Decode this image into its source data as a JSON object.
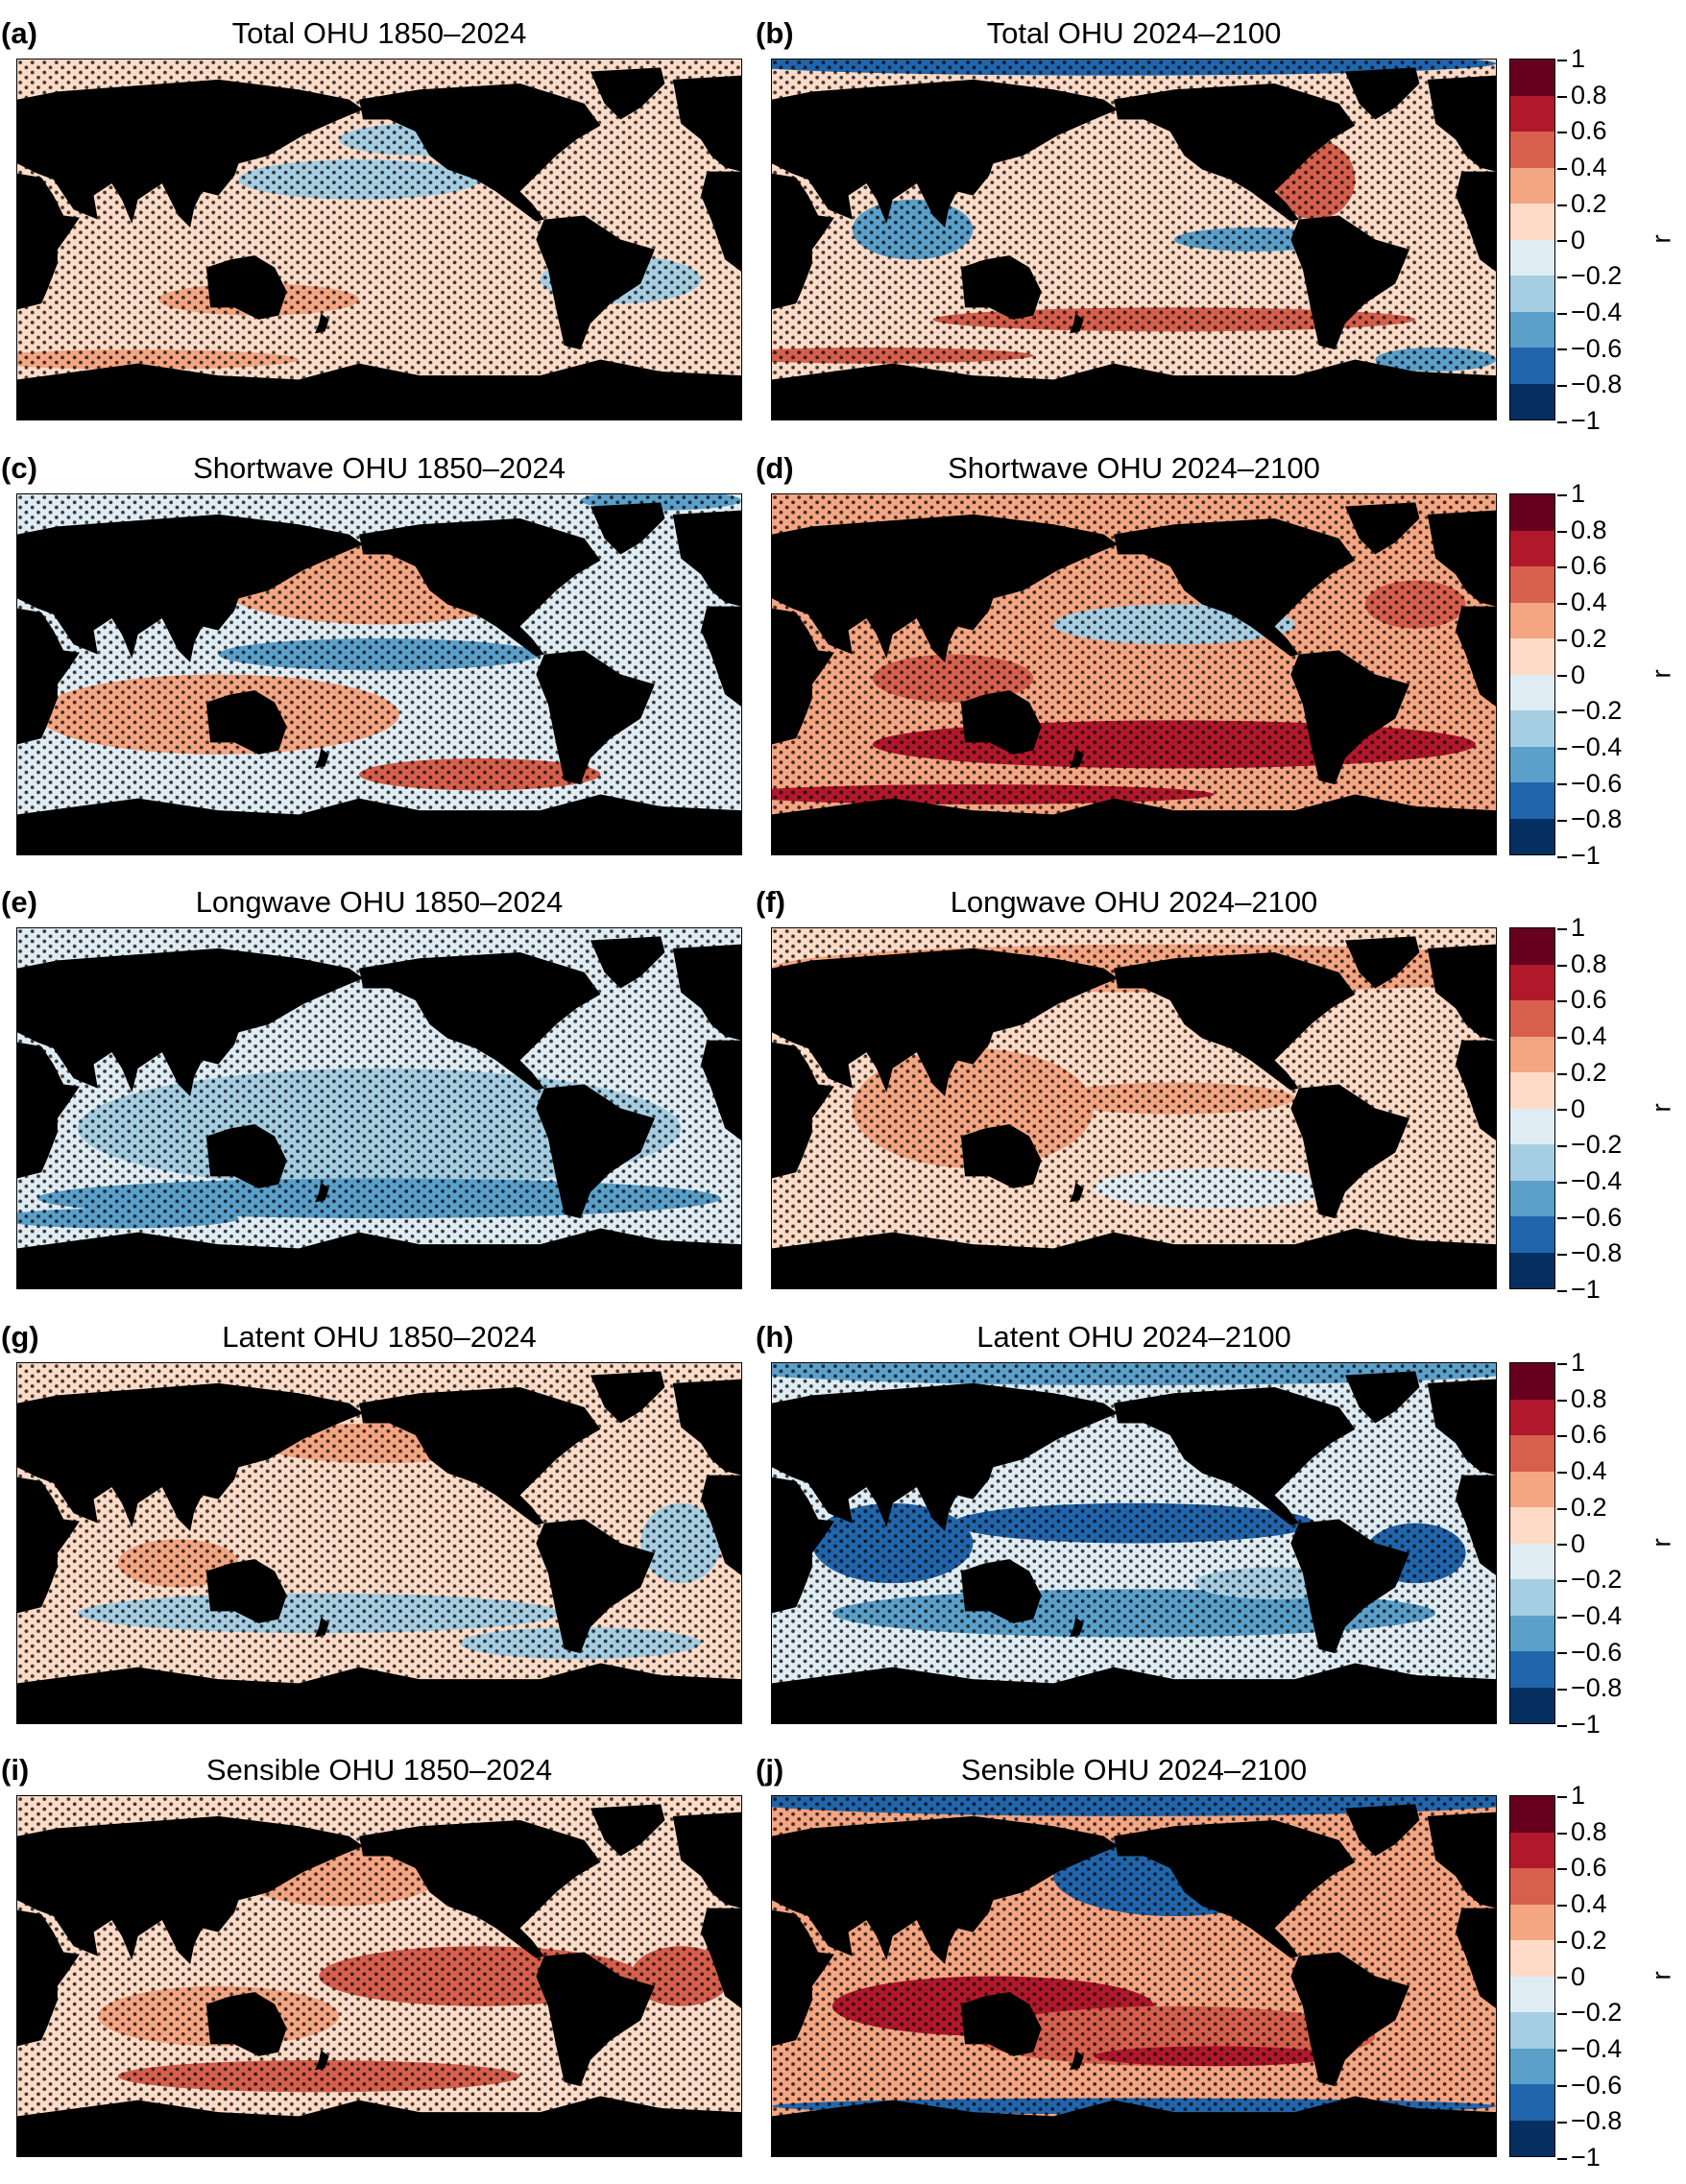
{
  "chart_data": {
    "type": "heatmap",
    "description_kind": "global correlation maps (stippled)",
    "colorbar": {
      "label": "r",
      "ticks": [
        "1",
        "0.8",
        "0.6",
        "0.4",
        "0.2",
        "0",
        "−0.2",
        "−0.4",
        "−0.6",
        "−0.8",
        "−1"
      ],
      "range": [
        -1,
        1
      ],
      "colors": [
        "#67001f",
        "#b2182b",
        "#d6604d",
        "#f4a582",
        "#fddbc7",
        "#e0ecf3",
        "#a6cee3",
        "#5aa0ca",
        "#2166ac",
        "#053061"
      ]
    },
    "panels": [
      {
        "label": "(a)",
        "title": "Total OHU 1850–2024",
        "base": "#fddbc7",
        "accent": [
          "#a6cee3",
          "#f4a582"
        ]
      },
      {
        "label": "(b)",
        "title": "Total OHU 2024–2100",
        "base": "#fddbc7",
        "accent": [
          "#d6604d",
          "#5aa0ca",
          "#2166ac"
        ]
      },
      {
        "label": "(c)",
        "title": "Shortwave OHU 1850–2024",
        "base": "#e0ecf3",
        "accent": [
          "#f4a582",
          "#5aa0ca",
          "#d6604d"
        ]
      },
      {
        "label": "(d)",
        "title": "Shortwave OHU 2024–2100",
        "base": "#f4a582",
        "accent": [
          "#d6604d",
          "#b2182b",
          "#a6cee3"
        ]
      },
      {
        "label": "(e)",
        "title": "Longwave OHU 1850–2024",
        "base": "#e0ecf3",
        "accent": [
          "#a6cee3",
          "#5aa0ca"
        ]
      },
      {
        "label": "(f)",
        "title": "Longwave OHU 2024–2100",
        "base": "#fddbc7",
        "accent": [
          "#f4a582",
          "#e0ecf3"
        ]
      },
      {
        "label": "(g)",
        "title": "Latent OHU 1850–2024",
        "base": "#fddbc7",
        "accent": [
          "#a6cee3",
          "#f4a582"
        ]
      },
      {
        "label": "(h)",
        "title": "Latent OHU 2024–2100",
        "base": "#e0ecf3",
        "accent": [
          "#5aa0ca",
          "#2166ac",
          "#a6cee3"
        ]
      },
      {
        "label": "(i)",
        "title": "Sensible OHU 1850–2024",
        "base": "#fddbc7",
        "accent": [
          "#d6604d",
          "#a6cee3",
          "#f4a582"
        ]
      },
      {
        "label": "(j)",
        "title": "Sensible OHU 2024–2100",
        "base": "#f4a582",
        "accent": [
          "#d6604d",
          "#b2182b",
          "#2166ac"
        ]
      }
    ]
  }
}
